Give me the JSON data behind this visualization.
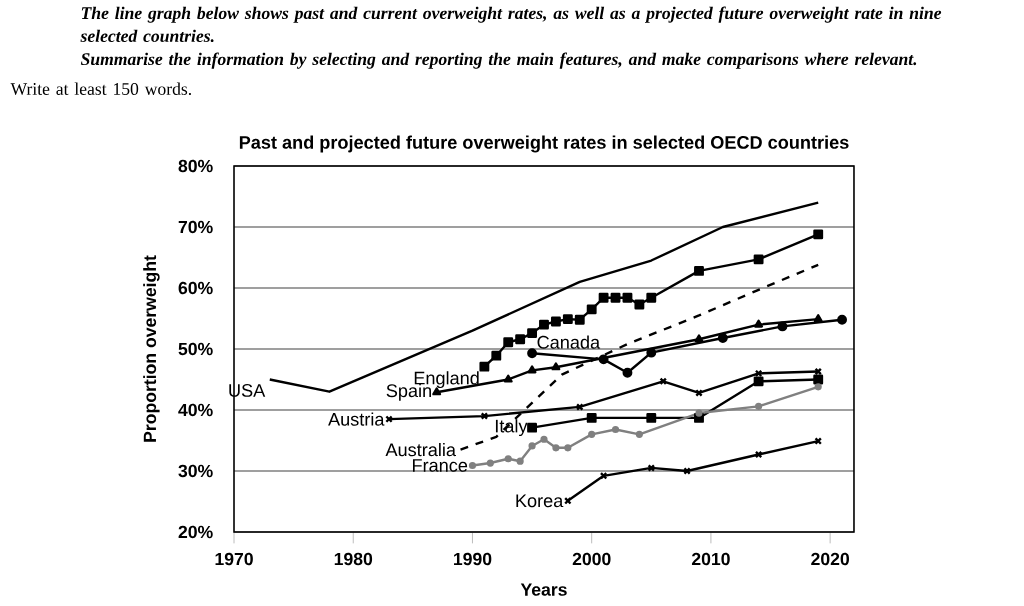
{
  "chart_data": {
    "type": "line",
    "title": "Past and projected future overweight rates in selected OECD countries",
    "annotations": [
      "The line graph below shows past and current overweight rates, as well as a projected future overweight rate in nine selected countries.",
      "Summarise the information by selecting and reporting the main features, and make comparisons where relevant.",
      "Write at least 150 words."
    ],
    "xlabel": "Years",
    "ylabel": "Proportion overweight",
    "xlim": [
      1970,
      2022
    ],
    "xticks": [
      1970,
      1980,
      1990,
      2000,
      2010,
      2020
    ],
    "ylim": [
      20,
      80
    ],
    "yticks": [
      {
        "value": 20,
        "label": "20%"
      },
      {
        "value": 30,
        "label": "30%"
      },
      {
        "value": 40,
        "label": "40%"
      },
      {
        "value": 50,
        "label": "50%"
      },
      {
        "value": 60,
        "label": "60%"
      },
      {
        "value": 70,
        "label": "70%"
      },
      {
        "value": 80,
        "label": "80%"
      }
    ],
    "grid": "y",
    "legend": false,
    "line_style": "solid",
    "series": [
      {
        "name": "USA",
        "color": "#000000",
        "marker": "none",
        "x": [
          1973,
          1978,
          1990,
          1999,
          2005,
          2011,
          2019
        ],
        "values": [
          45,
          43,
          53,
          61,
          64.5,
          70,
          74
        ]
      },
      {
        "name": "Canada",
        "color": "#000000",
        "marker": "circle",
        "x": [
          1995,
          2001,
          2003,
          2005,
          2011,
          2016,
          2021
        ],
        "values": [
          49.3,
          48.3,
          46.1,
          49.4,
          51.8,
          53.7,
          54.8
        ]
      },
      {
        "name": "England",
        "color": "#000000",
        "marker": "square",
        "x": [
          1991,
          1992,
          1993,
          1994,
          1995,
          1996,
          1997,
          1998,
          1999,
          2000,
          2001,
          2002,
          2003,
          2004,
          2005,
          2009,
          2014,
          2019
        ],
        "values": [
          47.1,
          48.9,
          51.1,
          51.6,
          52.6,
          54,
          54.5,
          54.9,
          54.8,
          56.5,
          58.4,
          58.4,
          58.4,
          57.3,
          58.4,
          62.8,
          64.7,
          68.8
        ]
      },
      {
        "name": "Spain",
        "color": "#000000",
        "marker": "triangle",
        "x": [
          1987,
          1993,
          1995,
          1997,
          2009,
          2014,
          2019
        ],
        "values": [
          42.9,
          45,
          46.5,
          47,
          51.6,
          54,
          54.9
        ]
      },
      {
        "name": "Austria",
        "color": "#000000",
        "marker": "cross",
        "x": [
          1983,
          1991,
          1999,
          2006,
          2009,
          2014,
          2019
        ],
        "values": [
          38.5,
          39,
          40.5,
          44.7,
          42.8,
          46,
          46.3
        ]
      },
      {
        "name": "Italy",
        "color": "#000000",
        "marker": "square",
        "x": [
          1995,
          2000,
          2005,
          2009,
          2014,
          2019
        ],
        "values": [
          37.1,
          38.7,
          38.7,
          38.7,
          44.7,
          45
        ]
      },
      {
        "name": "Australia",
        "color": "#000000",
        "marker": "none",
        "line_style": "dashed",
        "x": [
          1989,
          1992,
          1997.5,
          2003,
          2009,
          2014,
          2019
        ],
        "values": [
          33.5,
          35.6,
          45.8,
          50.8,
          55.5,
          59.7,
          63.8
        ]
      },
      {
        "name": "France",
        "color": "#808080",
        "marker": "circle",
        "x": [
          1990,
          1991.5,
          1993,
          1994,
          1995,
          1996,
          1997,
          1998,
          2000,
          2002,
          2004,
          2009,
          2014,
          2019
        ],
        "values": [
          30.9,
          31.3,
          32,
          31.6,
          34.1,
          35.2,
          33.8,
          33.8,
          36,
          36.8,
          36,
          39.5,
          40.6,
          43.8
        ]
      },
      {
        "name": "Korea",
        "color": "#000000",
        "marker": "cross",
        "x": [
          1998,
          2001,
          2005,
          2008,
          2014,
          2019
        ],
        "values": [
          25.1,
          29.2,
          30.5,
          30,
          32.7,
          34.9
        ]
      }
    ]
  }
}
